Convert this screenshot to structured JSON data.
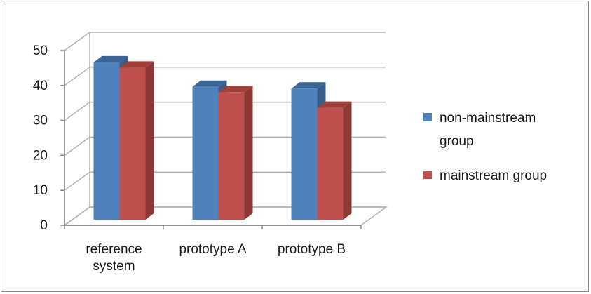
{
  "chart_data": {
    "type": "bar",
    "style": "3d-clustered-column",
    "categories": [
      [
        "reference",
        "system"
      ],
      [
        "prototype A"
      ],
      [
        "prototype B"
      ]
    ],
    "series": [
      {
        "name": [
          "non-mainstream",
          "group"
        ],
        "values": [
          45,
          38,
          37.5
        ],
        "color": "#4f81bd",
        "side_color": "#385d8a",
        "top_color": "#3a6596"
      },
      {
        "name": [
          "mainstream group"
        ],
        "values": [
          43.5,
          36.5,
          32
        ],
        "color": "#c0504d",
        "side_color": "#8c3836",
        "top_color": "#9e3f3c"
      }
    ],
    "y_ticks": [
      "0",
      "10",
      "20",
      "30",
      "40",
      "50"
    ],
    "ylim": [
      0,
      50
    ],
    "grid": true,
    "legend_position": "right",
    "title": "",
    "xlabel": "",
    "ylabel": ""
  }
}
